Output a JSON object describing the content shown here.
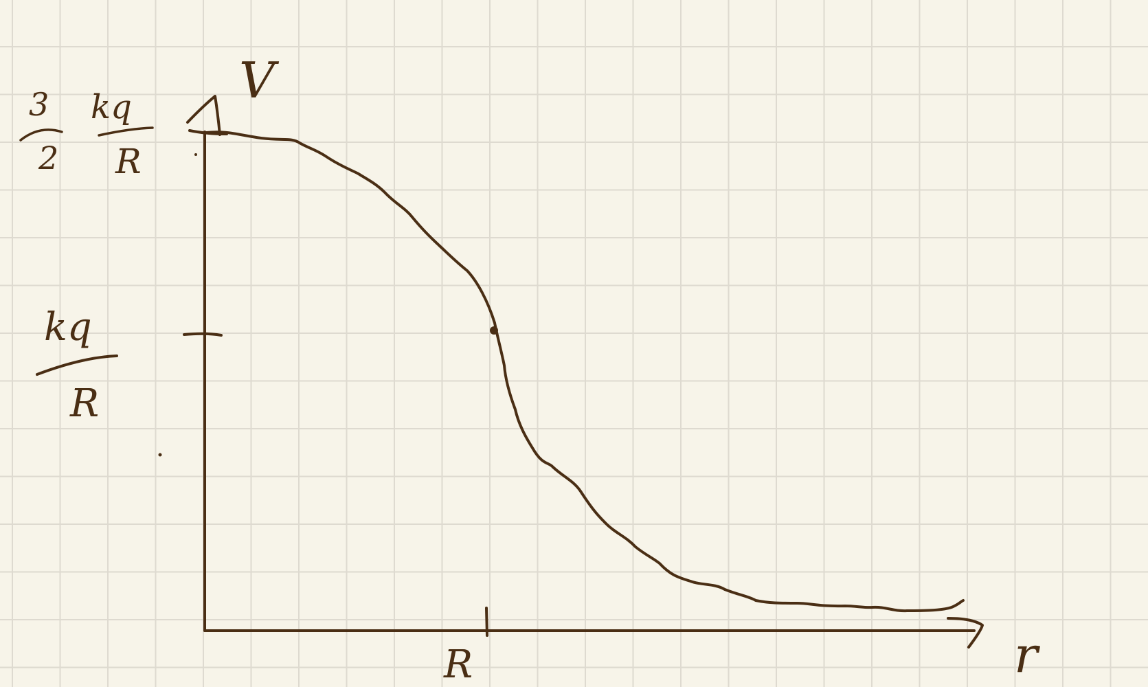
{
  "colors": {
    "paper": "#f7f4e9",
    "grid": "#dedad0",
    "ink": "#4a2e14"
  },
  "axes": {
    "y_label": "V",
    "x_label": "r",
    "x_tick_label": "R",
    "y_tick_label": {
      "numerator": "kq",
      "denominator": "R"
    },
    "y_max_label": {
      "coefficient_numerator": "3",
      "coefficient_denominator": "2",
      "numerator": "kq",
      "denominator": "R"
    }
  }
}
